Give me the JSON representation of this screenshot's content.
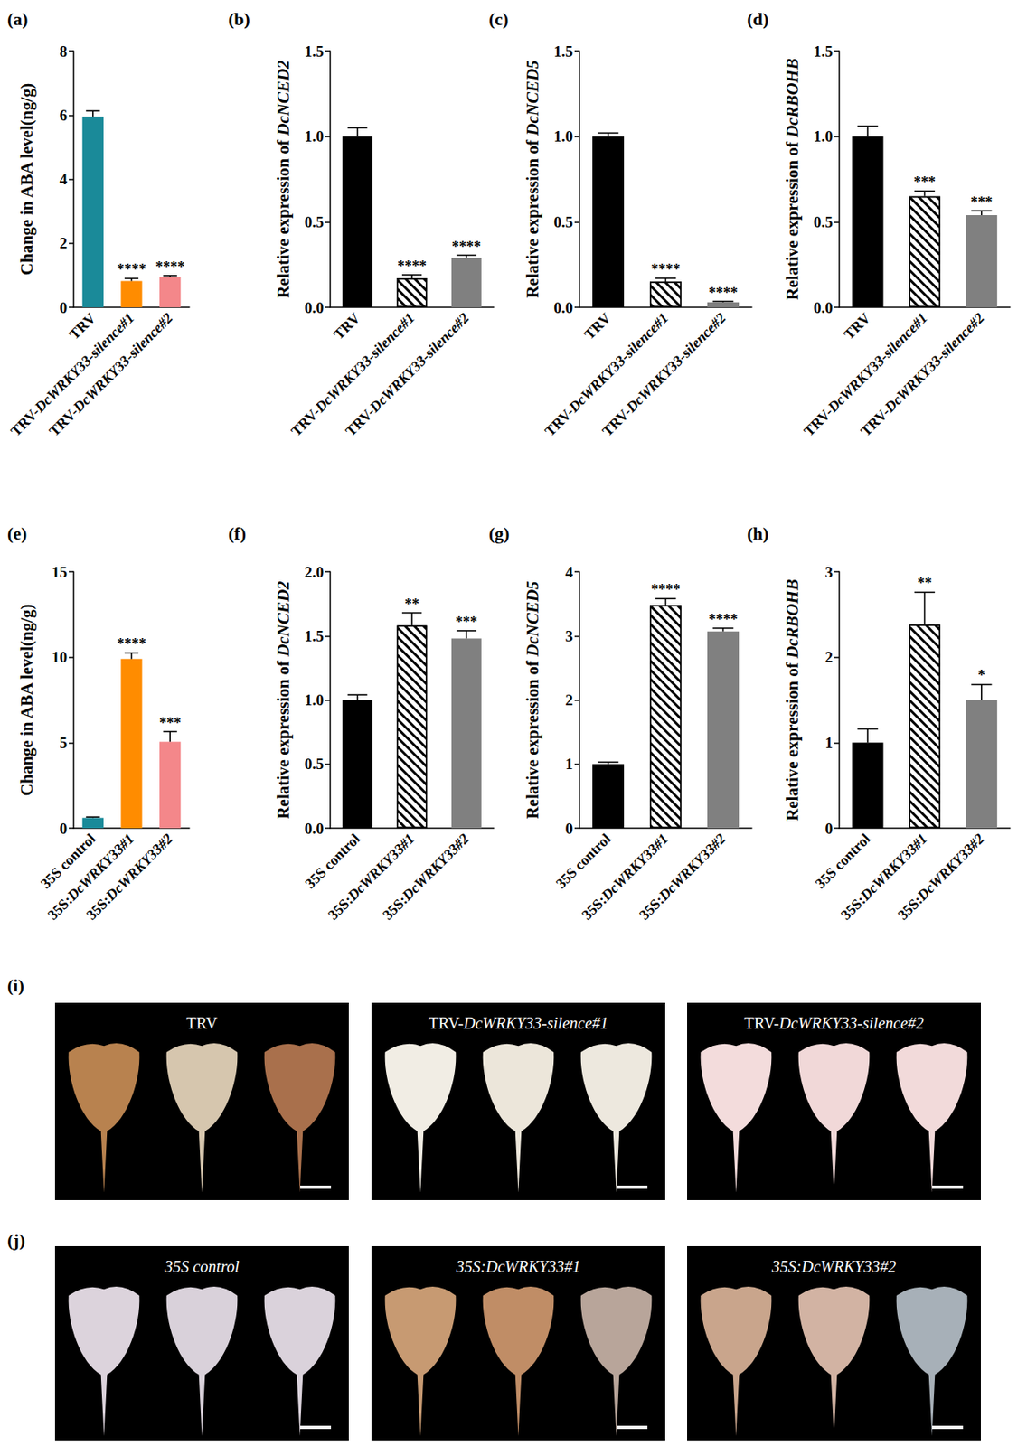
{
  "chart_data": [
    {
      "type": "bar",
      "panel": "(a)",
      "ylabel": "Change in ABA level(ng/g)",
      "categories": [
        "TRV",
        "TRV-DcWRKY33-silence#1",
        "TRV-DcWRKY33-silence#2"
      ],
      "values": [
        5.95,
        0.82,
        0.95
      ],
      "errors": [
        0.18,
        0.08,
        0.04
      ],
      "significance": [
        null,
        "****",
        "****"
      ],
      "colors": [
        "#1a8a99",
        "#ff8c00",
        "#f4878a"
      ],
      "ylim": [
        0,
        8
      ],
      "yticks": [
        0,
        2,
        4,
        6,
        8
      ],
      "grid": false
    },
    {
      "type": "bar",
      "panel": "(b)",
      "ylabel": "Relative expression of DcNCED2",
      "categories": [
        "TRV",
        "TRV-DcWRKY33-silence#1",
        "TRV-DcWRKY33-silence#2"
      ],
      "values": [
        1.0,
        0.17,
        0.29
      ],
      "errors": [
        0.05,
        0.02,
        0.015
      ],
      "significance": [
        null,
        "****",
        "****"
      ],
      "colors": [
        "#000000",
        "#ffffff",
        "#808080"
      ],
      "ylim": [
        0,
        1.5
      ],
      "yticks": [
        {
          "value": 0,
          "label": "0.0"
        },
        0.5,
        {
          "value": 1,
          "label": "1.0"
        },
        1.5
      ],
      "grid": false
    },
    {
      "type": "bar",
      "panel": "(c)",
      "ylabel": "Relative expression of DcNCED5",
      "categories": [
        "TRV",
        "TRV-DcWRKY33-silence#1",
        "TRV-DcWRKY33-silence#2"
      ],
      "values": [
        1.0,
        0.15,
        0.03
      ],
      "errors": [
        0.02,
        0.02,
        0.005
      ],
      "significance": [
        null,
        "****",
        "****"
      ],
      "colors": [
        "#000000",
        "#ffffff",
        "#808080"
      ],
      "ylim": [
        0,
        1.5
      ],
      "yticks": [
        {
          "value": 0,
          "label": "0.0"
        },
        0.5,
        {
          "value": 1,
          "label": "1.0"
        },
        1.5
      ],
      "grid": false
    },
    {
      "type": "bar",
      "panel": "(d)",
      "ylabel": "Relative expression of DcRBOHB",
      "categories": [
        "TRV",
        "TRV-DcWRKY33-silence#1",
        "TRV-DcWRKY33-silence#2"
      ],
      "values": [
        1.0,
        0.65,
        0.54
      ],
      "errors": [
        0.06,
        0.03,
        0.025
      ],
      "significance": [
        null,
        "***",
        "***"
      ],
      "colors": [
        "#000000",
        "#ffffff",
        "#808080"
      ],
      "ylim": [
        0,
        1.5
      ],
      "yticks": [
        {
          "value": 0,
          "label": "0.0"
        },
        0.5,
        {
          "value": 1,
          "label": "1.0"
        },
        1.5
      ],
      "grid": false
    },
    {
      "type": "bar",
      "panel": "(e)",
      "ylabel": "Change in ABA level(ng/g)",
      "categories": [
        "35S control",
        "35S:DcWRKY33#1",
        "35S:DcWRKY33#2"
      ],
      "values": [
        0.6,
        9.9,
        5.05
      ],
      "errors": [
        0.05,
        0.35,
        0.6
      ],
      "significance": [
        null,
        "****",
        "***"
      ],
      "colors": [
        "#1a8a99",
        "#ff8c00",
        "#f4878a"
      ],
      "ylim": [
        0,
        15
      ],
      "yticks": [
        0,
        5,
        10,
        15
      ],
      "grid": false
    },
    {
      "type": "bar",
      "panel": "(f)",
      "ylabel": "Relative expression of DcNCED2",
      "categories": [
        "35S control",
        "35S:DcWRKY33#1",
        "35S:DcWRKY33#2"
      ],
      "values": [
        1.0,
        1.58,
        1.48
      ],
      "errors": [
        0.04,
        0.1,
        0.06
      ],
      "significance": [
        null,
        "**",
        "***"
      ],
      "colors": [
        "#000000",
        "#ffffff",
        "#808080"
      ],
      "ylim": [
        0,
        2
      ],
      "yticks": [
        {
          "value": 0,
          "label": "0.0"
        },
        0.5,
        {
          "value": 1,
          "label": "1.0"
        },
        1.5,
        {
          "value": 2,
          "label": "2.0"
        }
      ],
      "grid": false
    },
    {
      "type": "bar",
      "panel": "(g)",
      "ylabel": "Relative expression of DcNCED5",
      "categories": [
        "35S control",
        "35S:DcWRKY33#1",
        "35S:DcWRKY33#2"
      ],
      "values": [
        1.0,
        3.48,
        3.07
      ],
      "errors": [
        0.03,
        0.1,
        0.05
      ],
      "significance": [
        null,
        "****",
        "****"
      ],
      "colors": [
        "#000000",
        "#ffffff",
        "#808080"
      ],
      "ylim": [
        0,
        4
      ],
      "yticks": [
        0,
        1,
        2,
        3,
        4
      ],
      "grid": false
    },
    {
      "type": "bar",
      "panel": "(h)",
      "ylabel": "Relative expression of DcRBOHB",
      "categories": [
        "35S control",
        "35S:DcWRKY33#1",
        "35S:DcWRKY33#2"
      ],
      "values": [
        1.0,
        2.38,
        1.5
      ],
      "errors": [
        0.16,
        0.38,
        0.18
      ],
      "significance": [
        null,
        "**",
        "*"
      ],
      "colors": [
        "#000000",
        "#ffffff",
        "#808080"
      ],
      "ylim": [
        0,
        3
      ],
      "yticks": [
        0,
        1,
        2,
        3
      ],
      "grid": false
    }
  ],
  "photo_panels": [
    {
      "panel": "(i)",
      "labels": [
        "TRV",
        "TRV-DcWRKY33-silence#1",
        "TRV-DcWRKY33-silence#2"
      ]
    },
    {
      "panel": "(j)",
      "labels": [
        "35S control",
        "35S:DcWRKY33#1",
        "35S:DcWRKY33#2"
      ]
    }
  ]
}
